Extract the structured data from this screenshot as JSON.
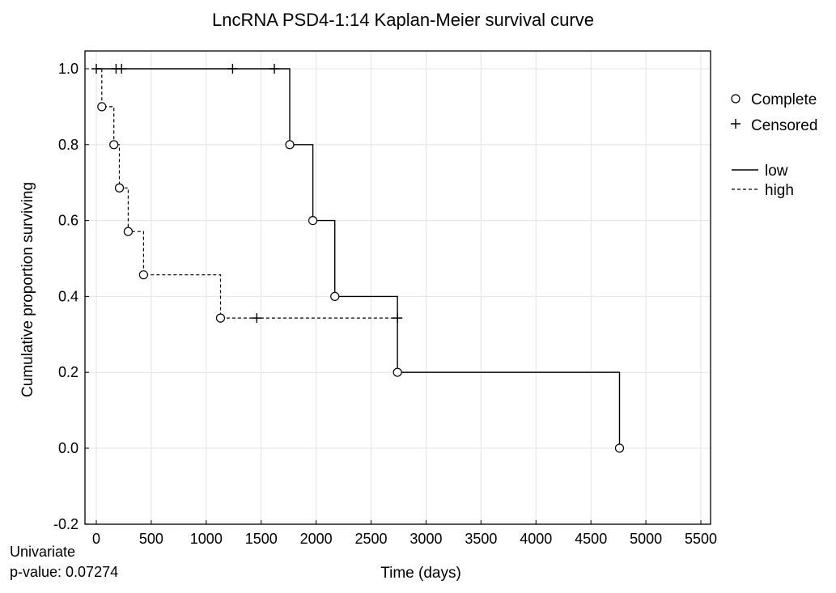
{
  "chart_data": {
    "type": "line",
    "title": "LncRNA PSD4-1:14 Kaplan-Meier survival curve",
    "xlabel": "Time (days)",
    "ylabel": "Cumulative proportion surviving",
    "xlim": [
      0,
      5500
    ],
    "ylim": [
      -0.2,
      1.0
    ],
    "x_ticks": [
      "0",
      "500",
      "1000",
      "1500",
      "2000",
      "2500",
      "3000",
      "3500",
      "4000",
      "4500",
      "5000",
      "5500"
    ],
    "y_ticks": [
      "1.0",
      "0.8",
      "0.6",
      "0.4",
      "0.2",
      "0.0",
      "-0.2"
    ],
    "grid": true,
    "legend_position": "right",
    "marker_legend": [
      {
        "symbol": "circle",
        "label": "Complete"
      },
      {
        "symbol": "plus",
        "label": "Censored"
      }
    ],
    "series": [
      {
        "name": "low",
        "line_style": "solid",
        "steps": [
          [
            0,
            1.0
          ],
          [
            1760,
            0.8
          ],
          [
            1970,
            0.6
          ],
          [
            2170,
            0.4
          ],
          [
            2740,
            0.2
          ],
          [
            4760,
            0.0
          ]
        ],
        "complete": [
          [
            1760,
            0.8
          ],
          [
            1970,
            0.6
          ],
          [
            2170,
            0.4
          ],
          [
            2740,
            0.2
          ],
          [
            4760,
            0.0
          ]
        ],
        "censored": [
          [
            0,
            1.0
          ],
          [
            180,
            1.0
          ],
          [
            230,
            1.0
          ],
          [
            1240,
            1.0
          ],
          [
            1620,
            1.0
          ]
        ]
      },
      {
        "name": "high",
        "line_style": "dashed",
        "steps": [
          [
            0,
            1.0
          ],
          [
            50,
            0.9
          ],
          [
            160,
            0.8
          ],
          [
            210,
            0.686
          ],
          [
            290,
            0.571
          ],
          [
            430,
            0.457
          ],
          [
            1130,
            0.343
          ],
          [
            2740,
            0.343
          ]
        ],
        "complete": [
          [
            50,
            0.9
          ],
          [
            160,
            0.8
          ],
          [
            210,
            0.686
          ],
          [
            290,
            0.571
          ],
          [
            430,
            0.457
          ],
          [
            1130,
            0.343
          ]
        ],
        "censored": [
          [
            1460,
            0.343
          ],
          [
            2740,
            0.343
          ]
        ]
      }
    ],
    "annotation": {
      "line1": "Univariate",
      "line2": "p-value: 0.07274"
    }
  }
}
